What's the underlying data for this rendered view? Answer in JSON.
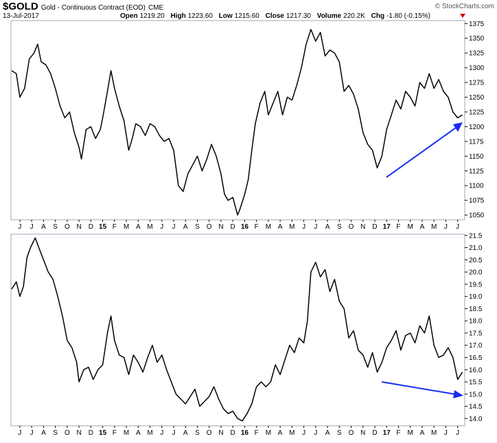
{
  "header": {
    "symbol": "$GOLD",
    "name": "Gold - Continuous Contract (EOD)",
    "exchange": "CME",
    "date": "13-Jul-2017",
    "quotes": [
      {
        "label": "Open",
        "value": "1219.20"
      },
      {
        "label": "High",
        "value": "1223.60"
      },
      {
        "label": "Low",
        "value": "1215.60"
      },
      {
        "label": "Close",
        "value": "1217.30"
      },
      {
        "label": "Volume",
        "value": "220.2K"
      },
      {
        "label": "Chg",
        "value": "-1.80 (-0.15%)"
      }
    ],
    "credit": "© StockCharts.com"
  },
  "chart_data": [
    {
      "type": "line",
      "color": "#000000",
      "xlim": [
        -0.75,
        37.6
      ],
      "ylim": [
        1042,
        1380
      ],
      "xticks": [
        {
          "value": 0,
          "label": "J"
        },
        {
          "value": 1,
          "label": "J"
        },
        {
          "value": 2,
          "label": "A"
        },
        {
          "value": 3,
          "label": "S"
        },
        {
          "value": 4,
          "label": "O"
        },
        {
          "value": 5,
          "label": "N"
        },
        {
          "value": 6,
          "label": "D"
        },
        {
          "value": 7,
          "label": "15"
        },
        {
          "value": 8,
          "label": "F"
        },
        {
          "value": 9,
          "label": "M"
        },
        {
          "value": 10,
          "label": "A"
        },
        {
          "value": 11,
          "label": "M"
        },
        {
          "value": 12,
          "label": "J"
        },
        {
          "value": 13,
          "label": "J"
        },
        {
          "value": 14,
          "label": "A"
        },
        {
          "value": 15,
          "label": "S"
        },
        {
          "value": 16,
          "label": "O"
        },
        {
          "value": 17,
          "label": "N"
        },
        {
          "value": 18,
          "label": "D"
        },
        {
          "value": 19,
          "label": "16"
        },
        {
          "value": 20,
          "label": "F"
        },
        {
          "value": 21,
          "label": "M"
        },
        {
          "value": 22,
          "label": "A"
        },
        {
          "value": 23,
          "label": "M"
        },
        {
          "value": 24,
          "label": "J"
        },
        {
          "value": 25,
          "label": "J"
        },
        {
          "value": 26,
          "label": "A"
        },
        {
          "value": 27,
          "label": "S"
        },
        {
          "value": 28,
          "label": "O"
        },
        {
          "value": 29,
          "label": "N"
        },
        {
          "value": 30,
          "label": "D"
        },
        {
          "value": 31,
          "label": "17"
        },
        {
          "value": 32,
          "label": "F"
        },
        {
          "value": 33,
          "label": "M"
        },
        {
          "value": 34,
          "label": "A"
        },
        {
          "value": 35,
          "label": "M"
        },
        {
          "value": 36,
          "label": "J"
        },
        {
          "value": 37,
          "label": "J"
        }
      ],
      "yticks": [
        1050,
        1075,
        1100,
        1125,
        1150,
        1175,
        1200,
        1225,
        1250,
        1275,
        1300,
        1325,
        1350,
        1375
      ],
      "x": [
        -0.7,
        -0.3,
        0.0,
        0.4,
        0.8,
        1.2,
        1.5,
        1.8,
        2.2,
        2.6,
        3.0,
        3.4,
        3.8,
        4.2,
        4.6,
        5.0,
        5.2,
        5.6,
        6.0,
        6.4,
        6.8,
        7.0,
        7.4,
        7.7,
        8.0,
        8.4,
        8.8,
        9.2,
        9.5,
        9.8,
        10.2,
        10.6,
        11.0,
        11.4,
        11.8,
        12.2,
        12.6,
        13.0,
        13.4,
        13.8,
        14.2,
        14.6,
        15.0,
        15.4,
        15.8,
        16.2,
        16.6,
        17.0,
        17.3,
        17.6,
        18.0,
        18.4,
        18.6,
        19.0,
        19.3,
        19.6,
        19.9,
        20.3,
        20.7,
        21.0,
        21.4,
        21.8,
        22.2,
        22.6,
        23.0,
        23.4,
        23.8,
        24.2,
        24.6,
        25.0,
        25.4,
        25.8,
        26.2,
        26.6,
        27.0,
        27.4,
        27.8,
        28.2,
        28.6,
        29.0,
        29.4,
        29.8,
        30.2,
        30.6,
        31.0,
        31.4,
        31.8,
        32.2,
        32.6,
        33.0,
        33.4,
        33.8,
        34.2,
        34.6,
        35.0,
        35.4,
        35.8,
        36.2,
        36.6,
        37.0,
        37.4
      ],
      "values": [
        1295,
        1290,
        1250,
        1265,
        1315,
        1325,
        1340,
        1310,
        1305,
        1290,
        1265,
        1235,
        1215,
        1225,
        1190,
        1165,
        1145,
        1195,
        1200,
        1180,
        1195,
        1215,
        1260,
        1295,
        1265,
        1235,
        1210,
        1160,
        1180,
        1205,
        1200,
        1185,
        1205,
        1200,
        1185,
        1175,
        1180,
        1160,
        1100,
        1090,
        1120,
        1135,
        1150,
        1125,
        1145,
        1170,
        1150,
        1120,
        1085,
        1075,
        1080,
        1050,
        1060,
        1085,
        1110,
        1160,
        1205,
        1240,
        1260,
        1220,
        1240,
        1260,
        1220,
        1250,
        1245,
        1270,
        1300,
        1340,
        1365,
        1345,
        1360,
        1320,
        1330,
        1325,
        1310,
        1260,
        1270,
        1255,
        1230,
        1190,
        1170,
        1160,
        1130,
        1150,
        1195,
        1220,
        1245,
        1230,
        1260,
        1250,
        1235,
        1275,
        1265,
        1290,
        1265,
        1280,
        1260,
        1250,
        1225,
        1215,
        1220
      ]
    },
    {
      "type": "line",
      "color": "#000000",
      "xlim": [
        -0.75,
        37.6
      ],
      "ylim": [
        13.7,
        21.55
      ],
      "xticks": [
        {
          "value": 0,
          "label": "J"
        },
        {
          "value": 1,
          "label": "J"
        },
        {
          "value": 2,
          "label": "A"
        },
        {
          "value": 3,
          "label": "S"
        },
        {
          "value": 4,
          "label": "O"
        },
        {
          "value": 5,
          "label": "N"
        },
        {
          "value": 6,
          "label": "D"
        },
        {
          "value": 7,
          "label": "15"
        },
        {
          "value": 8,
          "label": "F"
        },
        {
          "value": 9,
          "label": "M"
        },
        {
          "value": 10,
          "label": "A"
        },
        {
          "value": 11,
          "label": "M"
        },
        {
          "value": 12,
          "label": "J"
        },
        {
          "value": 13,
          "label": "J"
        },
        {
          "value": 14,
          "label": "A"
        },
        {
          "value": 15,
          "label": "S"
        },
        {
          "value": 16,
          "label": "O"
        },
        {
          "value": 17,
          "label": "N"
        },
        {
          "value": 18,
          "label": "D"
        },
        {
          "value": 19,
          "label": "16"
        },
        {
          "value": 20,
          "label": "F"
        },
        {
          "value": 21,
          "label": "M"
        },
        {
          "value": 22,
          "label": "A"
        },
        {
          "value": 23,
          "label": "M"
        },
        {
          "value": 24,
          "label": "J"
        },
        {
          "value": 25,
          "label": "J"
        },
        {
          "value": 26,
          "label": "A"
        },
        {
          "value": 27,
          "label": "S"
        },
        {
          "value": 28,
          "label": "O"
        },
        {
          "value": 29,
          "label": "N"
        },
        {
          "value": 30,
          "label": "D"
        },
        {
          "value": 31,
          "label": "17"
        },
        {
          "value": 32,
          "label": "F"
        },
        {
          "value": 33,
          "label": "M"
        },
        {
          "value": 34,
          "label": "A"
        },
        {
          "value": 35,
          "label": "M"
        },
        {
          "value": 36,
          "label": "J"
        },
        {
          "value": 37,
          "label": "J"
        }
      ],
      "yticks": [
        {
          "value": 14,
          "label": "14.0"
        },
        14.5,
        {
          "value": 15,
          "label": "15.0"
        },
        15.5,
        {
          "value": 16,
          "label": "16.0"
        },
        16.5,
        {
          "value": 17,
          "label": "17.0"
        },
        17.5,
        {
          "value": 18,
          "label": "18.0"
        },
        18.5,
        {
          "value": 19,
          "label": "19.0"
        },
        19.5,
        {
          "value": 20,
          "label": "20.0"
        },
        20.5,
        {
          "value": 21,
          "label": "21.0"
        },
        21.5
      ],
      "x": [
        -0.7,
        -0.3,
        0.0,
        0.3,
        0.6,
        0.9,
        1.3,
        1.6,
        2.0,
        2.4,
        2.8,
        3.2,
        3.6,
        4.0,
        4.4,
        4.8,
        5.0,
        5.4,
        5.8,
        6.2,
        6.6,
        7.0,
        7.4,
        7.7,
        8.0,
        8.4,
        8.8,
        9.2,
        9.6,
        10.0,
        10.4,
        10.8,
        11.2,
        11.6,
        12.0,
        12.4,
        12.8,
        13.2,
        13.6,
        14.0,
        14.4,
        14.8,
        15.2,
        15.6,
        16.0,
        16.4,
        16.8,
        17.2,
        17.6,
        18.0,
        18.4,
        18.8,
        19.2,
        19.6,
        20.0,
        20.4,
        20.8,
        21.2,
        21.6,
        22.0,
        22.4,
        22.8,
        23.2,
        23.6,
        24.0,
        24.3,
        24.6,
        25.0,
        25.4,
        25.8,
        26.2,
        26.6,
        27.0,
        27.4,
        27.8,
        28.2,
        28.6,
        29.0,
        29.4,
        29.8,
        30.2,
        30.6,
        31.0,
        31.4,
        31.8,
        32.2,
        32.6,
        33.0,
        33.4,
        33.8,
        34.2,
        34.6,
        35.0,
        35.4,
        35.8,
        36.2,
        36.6,
        37.0,
        37.4
      ],
      "values": [
        19.3,
        19.6,
        19.0,
        19.4,
        20.6,
        21.0,
        21.4,
        21.0,
        20.5,
        20.0,
        19.7,
        19.0,
        18.2,
        17.2,
        16.9,
        16.3,
        15.5,
        16.0,
        16.1,
        15.6,
        16.0,
        16.2,
        17.5,
        18.2,
        17.2,
        16.6,
        16.5,
        15.8,
        16.6,
        16.3,
        15.9,
        16.5,
        17.0,
        16.3,
        16.6,
        16.0,
        15.5,
        15.0,
        14.8,
        14.6,
        14.9,
        15.2,
        14.5,
        14.7,
        14.9,
        15.3,
        14.8,
        14.4,
        14.2,
        14.3,
        14.0,
        13.9,
        14.2,
        14.6,
        15.3,
        15.5,
        15.3,
        15.5,
        16.2,
        15.8,
        16.4,
        17.0,
        16.7,
        17.3,
        17.1,
        18.0,
        20.0,
        20.4,
        19.8,
        20.1,
        19.2,
        19.7,
        18.8,
        18.5,
        17.3,
        17.6,
        16.8,
        16.6,
        16.1,
        16.7,
        15.9,
        16.3,
        16.9,
        17.2,
        17.6,
        16.8,
        17.4,
        17.5,
        17.1,
        17.8,
        17.5,
        18.2,
        17.0,
        16.5,
        16.6,
        16.9,
        16.5,
        15.6,
        15.9
      ]
    }
  ]
}
